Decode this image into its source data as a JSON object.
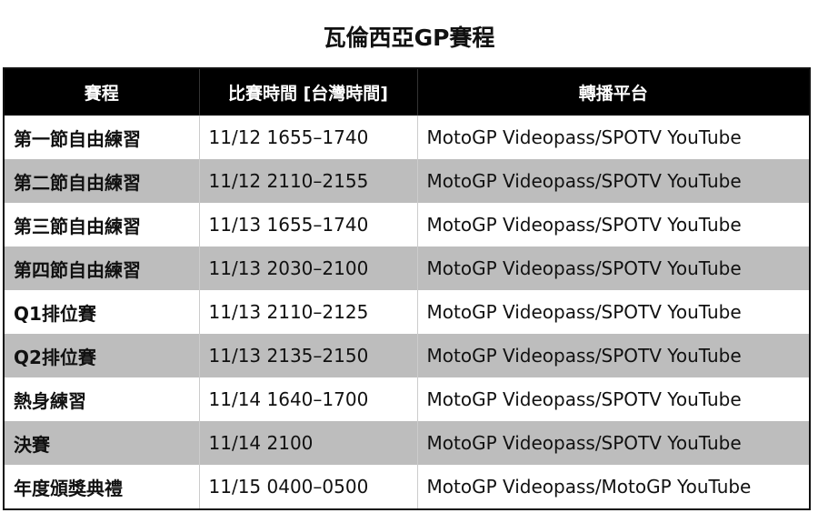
{
  "title": "瓦倫西亞GP賽程",
  "headers": [
    "賽程",
    "比賽時間 [台灣時間]",
    "轉播平台"
  ],
  "rows": [
    [
      "第一節自由練習",
      "11/12 1655–1740",
      "MotoGP Videopass/SPOTV YouTube"
    ],
    [
      "第二節自由練習",
      "11/12 2110–2155",
      "MotoGP Videopass/SPOTV YouTube"
    ],
    [
      "第三節自由練習",
      "11/13 1655–1740",
      "MotoGP Videopass/SPOTV YouTube"
    ],
    [
      "第四節自由練習",
      "11/13 2030–2100",
      "MotoGP Videopass/SPOTV YouTube"
    ],
    [
      "Q1排位賽",
      "11/13 2110–2125",
      "MotoGP Videopass/SPOTV YouTube"
    ],
    [
      "Q2排位賽",
      "11/13 2135–2150",
      "MotoGP Videopass/SPOTV YouTube"
    ],
    [
      "熱身練習",
      "11/14 1640–1700",
      "MotoGP Videopass/SPOTV YouTube"
    ],
    [
      "決賽",
      "11/14 2100",
      "MotoGP Videopass/SPOTV YouTube"
    ],
    [
      "年度頒獎典禮",
      "11/15 0400–0500",
      "MotoGP Videopass/MotoGP YouTube"
    ]
  ],
  "colors": {
    "header_bg": "#000000",
    "alt_row": "#bdbdbd"
  }
}
